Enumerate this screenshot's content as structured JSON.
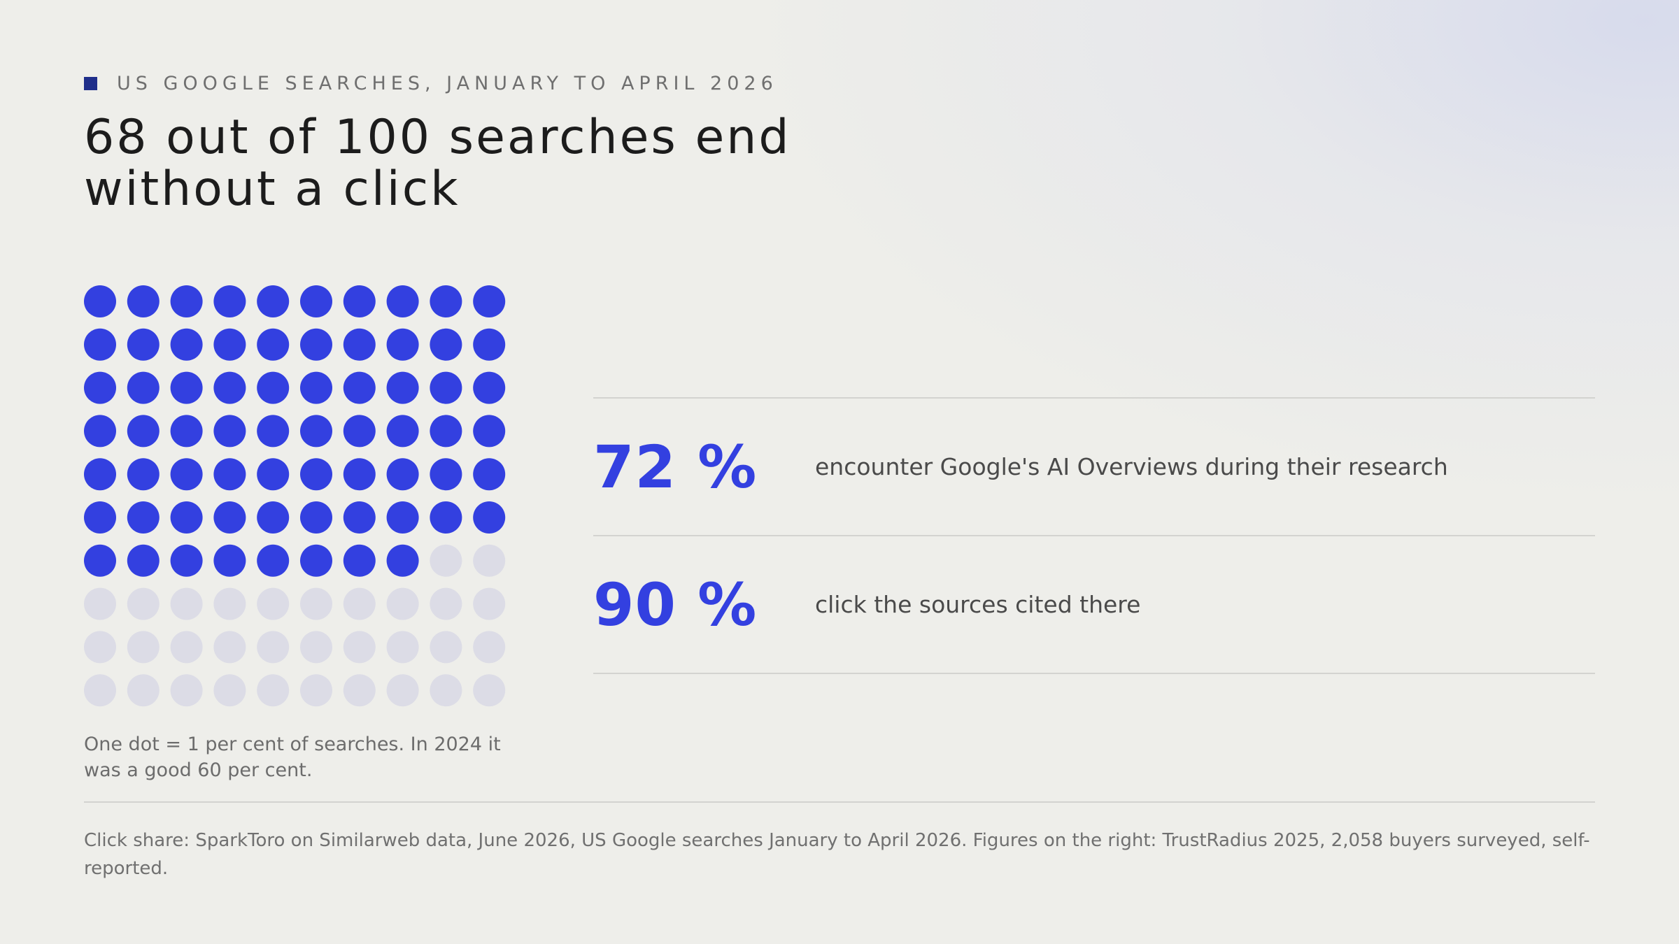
{
  "kicker": "US GOOGLE SEARCHES, JANUARY TO APRIL 2026",
  "headline": "68 out of 100 searches end without a click",
  "colors": {
    "accent": "#3340e0",
    "dot_filled": "#3340e0",
    "dot_empty": "#dcdce6",
    "kicker_square": "#1f2e8a"
  },
  "chart_data": {
    "type": "waffle",
    "rows": 10,
    "columns": 10,
    "total": 100,
    "filled": 68,
    "note": "One dot = 1 per cent of searches. In 2024 it was a good 60 per cent."
  },
  "stats": [
    {
      "value": "72 %",
      "text": "encounter Google's AI Overviews during their research"
    },
    {
      "value": "90 %",
      "text": "click the sources cited there"
    }
  ],
  "footnote": "Click share: SparkToro on Similarweb data, June 2026, US Google searches January to April 2026. Figures on the right: TrustRadius 2025, 2,058 buyers surveyed, self-reported."
}
